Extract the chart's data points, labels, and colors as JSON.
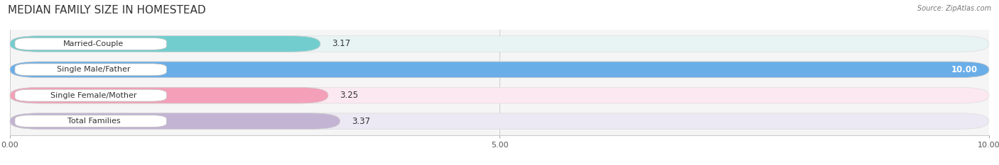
{
  "title": "MEDIAN FAMILY SIZE IN HOMESTEAD",
  "source": "Source: ZipAtlas.com",
  "categories": [
    "Married-Couple",
    "Single Male/Father",
    "Single Female/Mother",
    "Total Families"
  ],
  "values": [
    3.17,
    10.0,
    3.25,
    3.37
  ],
  "bar_colors": [
    "#72cece",
    "#6aaee8",
    "#f4a0b8",
    "#c4b4d4"
  ],
  "bar_bg_colors": [
    "#e8f4f4",
    "#e8eef8",
    "#fce8f0",
    "#ece8f4"
  ],
  "xlim": [
    0,
    10
  ],
  "xticks": [
    0.0,
    5.0,
    10.0
  ],
  "xtick_labels": [
    "0.00",
    "5.00",
    "10.00"
  ],
  "background_color": "#ffffff",
  "plot_bg_color": "#f5f5f5",
  "title_fontsize": 11,
  "label_fontsize": 8,
  "value_fontsize": 8.5,
  "bar_height": 0.62,
  "figsize": [
    14.06,
    2.33
  ],
  "dpi": 100
}
